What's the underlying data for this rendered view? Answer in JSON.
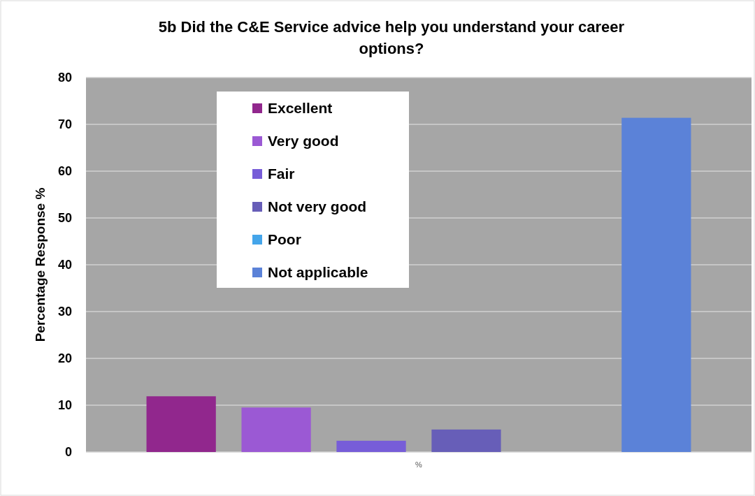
{
  "chart_data": {
    "type": "bar",
    "title": "5b  Did the C&E Service advice help you understand your career options?",
    "ylabel": "Percentage Response %",
    "categories": [
      "%"
    ],
    "series": [
      {
        "name": "Excellent",
        "color": "#91278d",
        "values": [
          11.9
        ]
      },
      {
        "name": "Very good",
        "color": "#9b59d4",
        "values": [
          9.5
        ]
      },
      {
        "name": "Fair",
        "color": "#775dd8",
        "values": [
          2.4
        ]
      },
      {
        "name": "Not very good",
        "color": "#675eb8",
        "values": [
          4.8
        ]
      },
      {
        "name": "Poor",
        "color": "#44a5ea",
        "values": [
          0
        ]
      },
      {
        "name": "Not applicable",
        "color": "#5b82d8",
        "values": [
          71.4
        ]
      }
    ],
    "ylim": [
      0,
      80
    ],
    "yticks": [
      0,
      10,
      20,
      30,
      40,
      50,
      60,
      70,
      80
    ],
    "grid": "y",
    "legend": "top left"
  }
}
